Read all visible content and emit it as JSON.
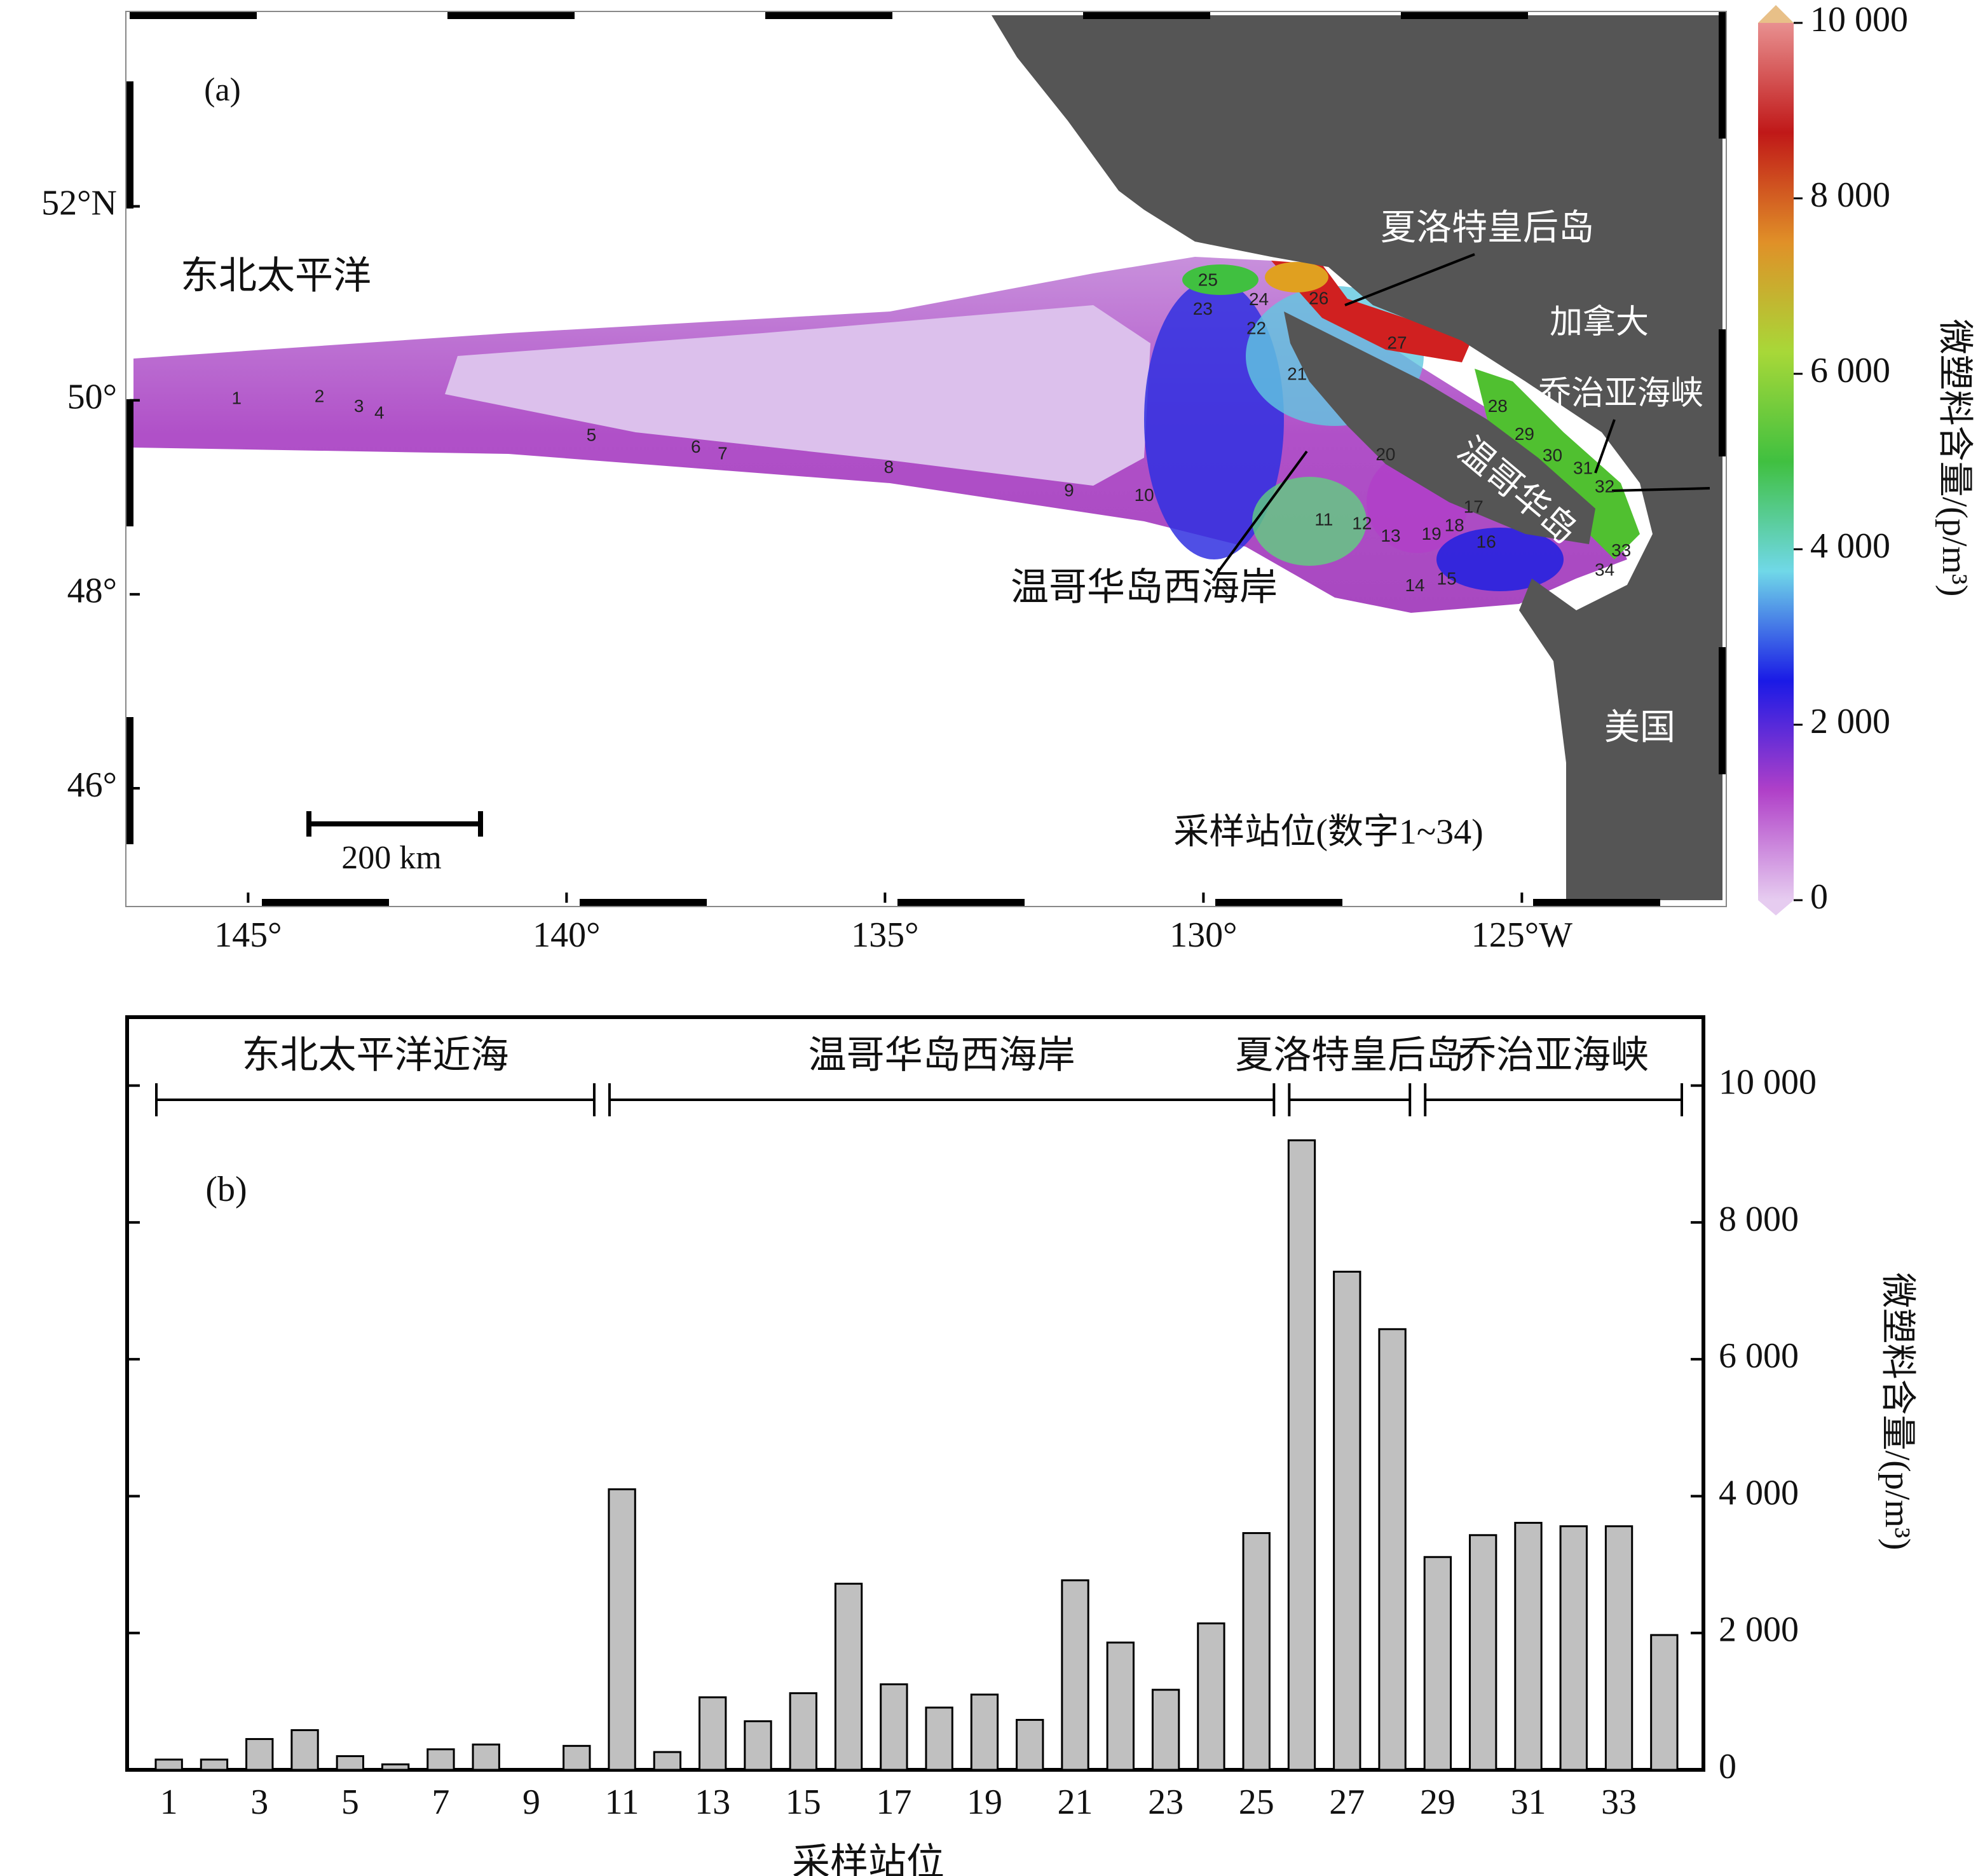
{
  "chart_data": [
    {
      "type": "map",
      "panel_label": "(a)",
      "xlim": [
        -146.86,
        -121.85
      ],
      "ylim": [
        44.82,
        53.97
      ],
      "xticks": [
        {
          "value": -145,
          "label": "145°"
        },
        {
          "value": -140,
          "label": "140°"
        },
        {
          "value": -135,
          "label": "135°"
        },
        {
          "value": -130,
          "label": "130°"
        },
        {
          "value": -125,
          "label": "125°W"
        }
      ],
      "yticks": [
        {
          "value": 52,
          "label": "52°N"
        },
        {
          "value": 50,
          "label": "50°"
        },
        {
          "value": 48,
          "label": "48°"
        },
        {
          "value": 46,
          "label": "46°"
        }
      ],
      "labels": {
        "ocean": "东北太平洋",
        "qci": "夏洛特皇后岛",
        "canada": "加拿大",
        "georgia": "乔治亚海峡",
        "island": "温哥华岛",
        "west_coast": "温哥华岛西海岸",
        "usa": "美国",
        "stations_note": "采样站位(数字1~34)",
        "scale": "200 km"
      },
      "stations": [
        {
          "label": "1",
          "lon": -145.18,
          "lat": 50.01
        },
        {
          "label": "2",
          "lon": -143.88,
          "lat": 50.03
        },
        {
          "label": "3",
          "lon": -143.26,
          "lat": 49.93
        },
        {
          "label": "4",
          "lon": -142.94,
          "lat": 49.86
        },
        {
          "label": "5",
          "lon": -139.61,
          "lat": 49.63
        },
        {
          "label": "6",
          "lon": -137.97,
          "lat": 49.51
        },
        {
          "label": "7",
          "lon": -137.55,
          "lat": 49.44
        },
        {
          "label": "8",
          "lon": -134.94,
          "lat": 49.3
        },
        {
          "label": "9",
          "lon": -132.11,
          "lat": 49.06
        },
        {
          "label": "10",
          "lon": -130.93,
          "lat": 49.01
        },
        {
          "label": "11",
          "lon": -128.11,
          "lat": 48.76
        },
        {
          "label": "12",
          "lon": -127.51,
          "lat": 48.72
        },
        {
          "label": "13",
          "lon": -127.06,
          "lat": 48.59
        },
        {
          "label": "14",
          "lon": -126.68,
          "lat": 48.08
        },
        {
          "label": "15",
          "lon": -126.18,
          "lat": 48.15
        },
        {
          "label": "16",
          "lon": -125.56,
          "lat": 48.53
        },
        {
          "label": "17",
          "lon": -125.76,
          "lat": 48.89
        },
        {
          "label": "18",
          "lon": -126.06,
          "lat": 48.7
        },
        {
          "label": "19",
          "lon": -126.42,
          "lat": 48.61
        },
        {
          "label": "20",
          "lon": -127.14,
          "lat": 49.43
        },
        {
          "label": "21",
          "lon": -128.53,
          "lat": 50.26
        },
        {
          "label": "22",
          "lon": -129.17,
          "lat": 50.73
        },
        {
          "label": "23",
          "lon": -130.01,
          "lat": 50.93
        },
        {
          "label": "24",
          "lon": -129.13,
          "lat": 51.03
        },
        {
          "label": "25",
          "lon": -129.93,
          "lat": 51.23
        },
        {
          "label": "26",
          "lon": -128.19,
          "lat": 51.04
        },
        {
          "label": "27",
          "lon": -126.96,
          "lat": 50.58
        },
        {
          "label": "28",
          "lon": -125.38,
          "lat": 49.93
        },
        {
          "label": "29",
          "lon": -124.96,
          "lat": 49.64
        },
        {
          "label": "30",
          "lon": -124.52,
          "lat": 49.42
        },
        {
          "label": "31",
          "lon": -124.04,
          "lat": 49.29
        },
        {
          "label": "32",
          "lon": -123.7,
          "lat": 49.1
        },
        {
          "label": "33",
          "lon": -123.44,
          "lat": 48.44
        },
        {
          "label": "34",
          "lon": -123.7,
          "lat": 48.24
        }
      ],
      "colorbar": {
        "label": "微塑料含量/(p/m³)",
        "lim": [
          0,
          10000
        ],
        "ticks": [
          0,
          {
            "value": 2000,
            "label": "2 000"
          },
          {
            "value": 4000,
            "label": "4 000"
          },
          {
            "value": 6000,
            "label": "6 000"
          },
          {
            "value": 8000,
            "label": "8 000"
          },
          {
            "value": 10000,
            "label": "10 000"
          }
        ],
        "colors": [
          "#e6ccf0",
          "#b040c8",
          "#1a1ae6",
          "#70d8e8",
          "#40c040",
          "#a8d838",
          "#e09028",
          "#c01818",
          "#e89090"
        ]
      }
    },
    {
      "type": "bar",
      "panel_label": "(b)",
      "xlabel": "采样站位",
      "ylabel": "微塑料含量/(p/m³)",
      "categories": [
        "1",
        null,
        "3",
        null,
        "5",
        null,
        "7",
        null,
        "9",
        null,
        "11",
        null,
        "13",
        null,
        "15",
        null,
        "17",
        null,
        "19",
        null,
        "21",
        null,
        "23",
        null,
        "25",
        null,
        "27",
        null,
        "29",
        null,
        "31",
        null,
        "33",
        null
      ],
      "values": [
        150,
        150,
        450,
        580,
        200,
        80,
        300,
        370,
        0,
        350,
        4100,
        260,
        1060,
        710,
        1120,
        2720,
        1250,
        910,
        1100,
        730,
        2770,
        1860,
        1170,
        2140,
        3460,
        9200,
        7280,
        6440,
        3110,
        3430,
        3610,
        3560,
        3560,
        1970
      ],
      "color": "#c0c0c0",
      "ylim": [
        0,
        11000
      ],
      "yticks": [
        0,
        {
          "value": 2000,
          "label": "2 000"
        },
        {
          "value": 4000,
          "label": "4 000"
        },
        {
          "value": 6000,
          "label": "6 000"
        },
        {
          "value": 8000,
          "label": "8 000"
        },
        {
          "value": 10000,
          "label": "10 000"
        }
      ],
      "groups": [
        {
          "label": "东北太平洋近海",
          "start": 1,
          "end": 10
        },
        {
          "label": "温哥华岛西海岸",
          "start": 11,
          "end": 25
        },
        {
          "label": "夏洛特皇后岛",
          "start": 26,
          "end": 28
        },
        {
          "label": "乔治亚海峡",
          "start": 29,
          "end": 34
        }
      ]
    }
  ]
}
